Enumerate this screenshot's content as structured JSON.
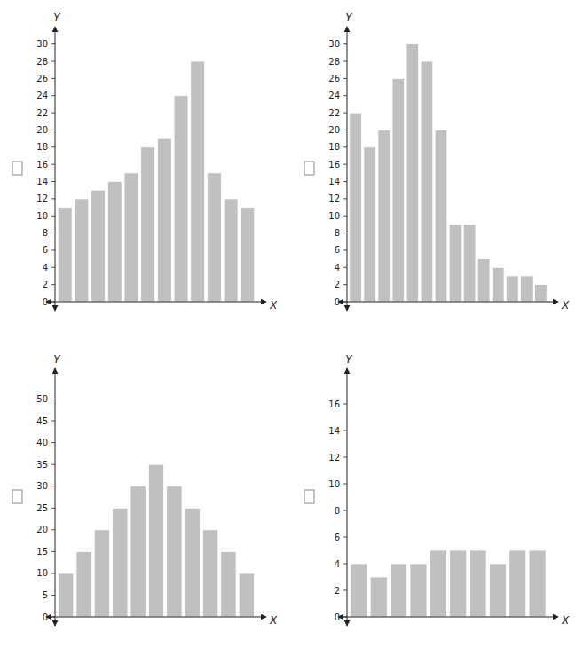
{
  "chart_data": [
    {
      "type": "bar",
      "values": [
        11,
        12,
        13,
        14,
        15,
        18,
        19,
        24,
        28,
        15,
        12,
        11
      ],
      "color": "#c0c0c0",
      "xlabel": "X",
      "ylabel": "Y",
      "ylim": [
        0,
        31
      ],
      "yticks": [
        0,
        2,
        4,
        6,
        8,
        10,
        12,
        14,
        16,
        18,
        20,
        22,
        24,
        26,
        28,
        30
      ],
      "tick_labels": "y"
    },
    {
      "type": "bar",
      "values": [
        22,
        18,
        20,
        26,
        30,
        28,
        20,
        9,
        9,
        5,
        4,
        3,
        3,
        2
      ],
      "color": "#c0c0c0",
      "xlabel": "X",
      "ylabel": "Y",
      "ylim": [
        0,
        31
      ],
      "yticks": [
        0,
        2,
        4,
        6,
        8,
        10,
        12,
        14,
        16,
        18,
        20,
        22,
        24,
        26,
        28,
        30
      ],
      "tick_labels": "y"
    },
    {
      "type": "bar",
      "values": [
        10,
        15,
        20,
        25,
        30,
        35,
        30,
        25,
        20,
        15,
        10
      ],
      "color": "#c0c0c0",
      "xlabel": "X",
      "ylabel": "Y",
      "ylim": [
        0,
        55
      ],
      "yticks": [
        0,
        5,
        10,
        15,
        20,
        25,
        30,
        35,
        40,
        45,
        50
      ],
      "tick_labels": "y"
    },
    {
      "type": "bar",
      "values": [
        4,
        3,
        4,
        4,
        5,
        5,
        5,
        4,
        5,
        5
      ],
      "color": "#c0c0c0",
      "xlabel": "X",
      "ylabel": "Y",
      "ylim": [
        0,
        18
      ],
      "yticks": [
        0,
        2,
        4,
        6,
        8,
        10,
        12,
        14,
        16
      ],
      "tick_labels": "y"
    }
  ]
}
